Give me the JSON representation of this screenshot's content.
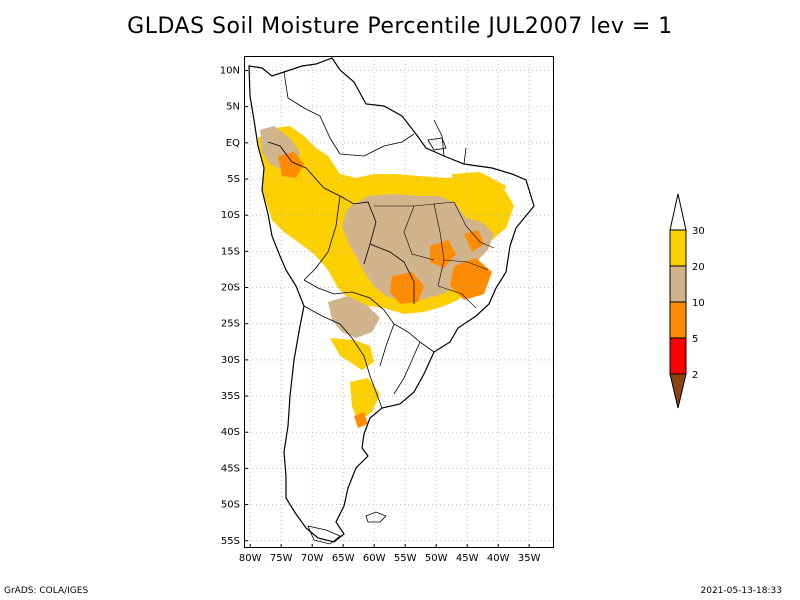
{
  "title": "GLDAS Soil Moisture Percentile JUL2007 lev = 1",
  "footer": {
    "credit": "GrADS: COLA/IGES",
    "timestamp": "2021-05-13-18:33"
  },
  "colors": {
    "below_2": "#8b4513",
    "2_5": "#ff0000",
    "5_10": "#ff8c00",
    "10_20": "#d2b48c",
    "20_30": "#ffd000",
    "above_30": "#ffffff",
    "coast": "#000000",
    "grid": "#b0b0b0"
  },
  "colorbar": {
    "labels": [
      "2",
      "5",
      "10",
      "20",
      "30"
    ]
  },
  "chart_data": {
    "type": "heatmap",
    "title": "GLDAS Soil Moisture Percentile JUL2007 lev = 1",
    "lon_range": [
      -81,
      -31
    ],
    "lat_range": [
      -56,
      12
    ],
    "grid": true,
    "x_ticks": [
      "80W",
      "75W",
      "70W",
      "65W",
      "60W",
      "55W",
      "50W",
      "45W",
      "40W",
      "35W"
    ],
    "y_ticks": [
      "10N",
      "5N",
      "EQ",
      "5S",
      "10S",
      "15S",
      "20S",
      "25S",
      "30S",
      "35S",
      "40S",
      "45S",
      "50S",
      "55S"
    ],
    "colorbar_levels": [
      2,
      5,
      10,
      20,
      30
    ],
    "legend_position": "right"
  }
}
